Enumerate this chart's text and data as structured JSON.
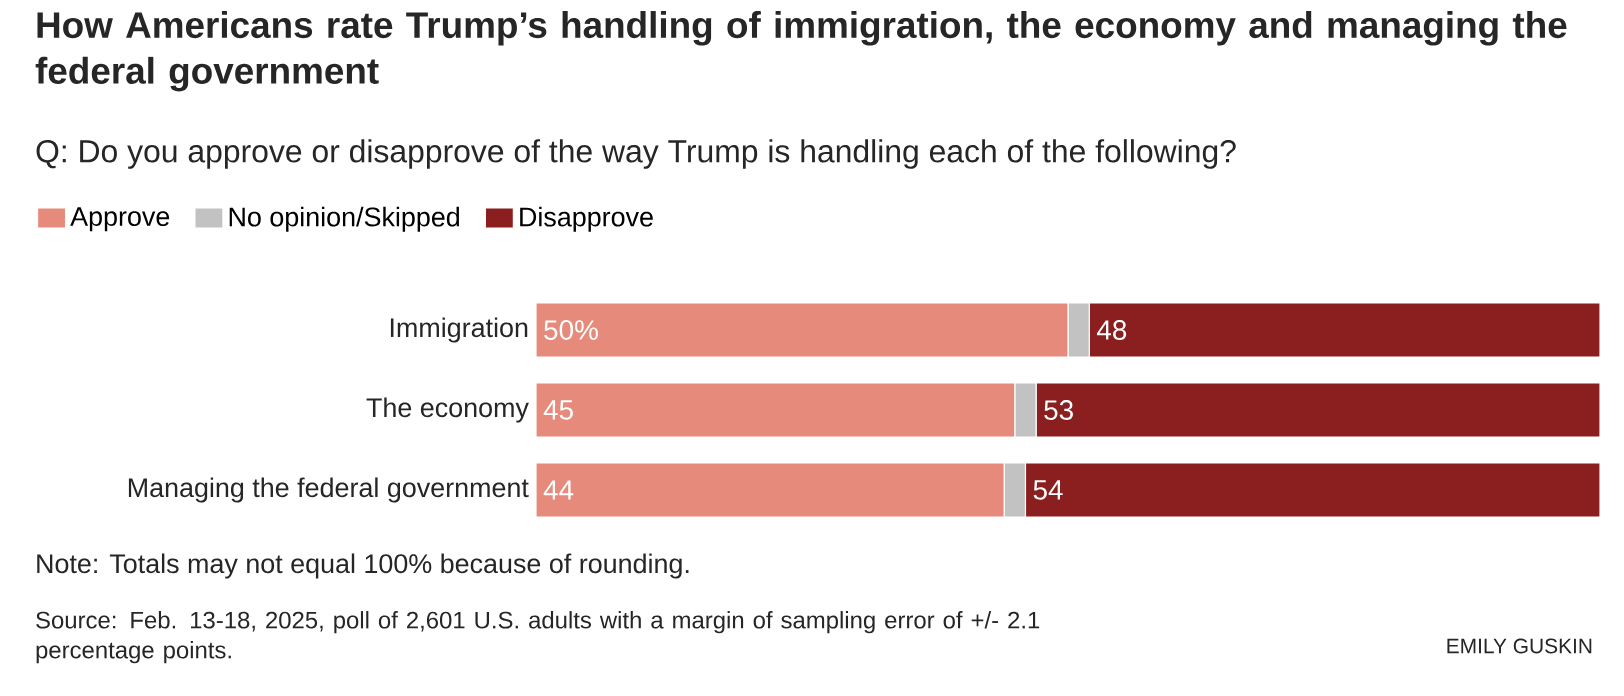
{
  "chart_data": {
    "type": "bar",
    "orientation": "horizontal",
    "stacked": true,
    "title": "How Americans rate Trump’s handling of immigration, the economy and managing the federal government",
    "subtitle": "Q: Do you approve or disapprove of the way Trump is handling each of the following?",
    "categories": [
      "Immigration",
      "The economy",
      "Managing the federal government"
    ],
    "series": [
      {
        "name": "Approve",
        "color": "#e68a7b",
        "values": [
          50,
          45,
          44
        ],
        "value_labels": [
          "50%",
          "45",
          "44"
        ]
      },
      {
        "name": "No opinion/Skipped",
        "color": "#c2c2c2",
        "values": [
          2,
          2,
          2
        ],
        "value_labels": [
          null,
          null,
          null
        ]
      },
      {
        "name": "Disapprove",
        "color": "#8b1e1e",
        "values": [
          48,
          53,
          54
        ],
        "value_labels": [
          "48",
          "53",
          "54"
        ]
      }
    ],
    "legend": "top left",
    "annotations": [
      "Note: Totals may not equal 100% because of rounding.",
      "Source: Feb. 13-18, 2025, poll of 2,601 U.S. adults with a margin of sampling error of +/- 2.1 percentage points.",
      "EMILY GUSKIN"
    ]
  }
}
